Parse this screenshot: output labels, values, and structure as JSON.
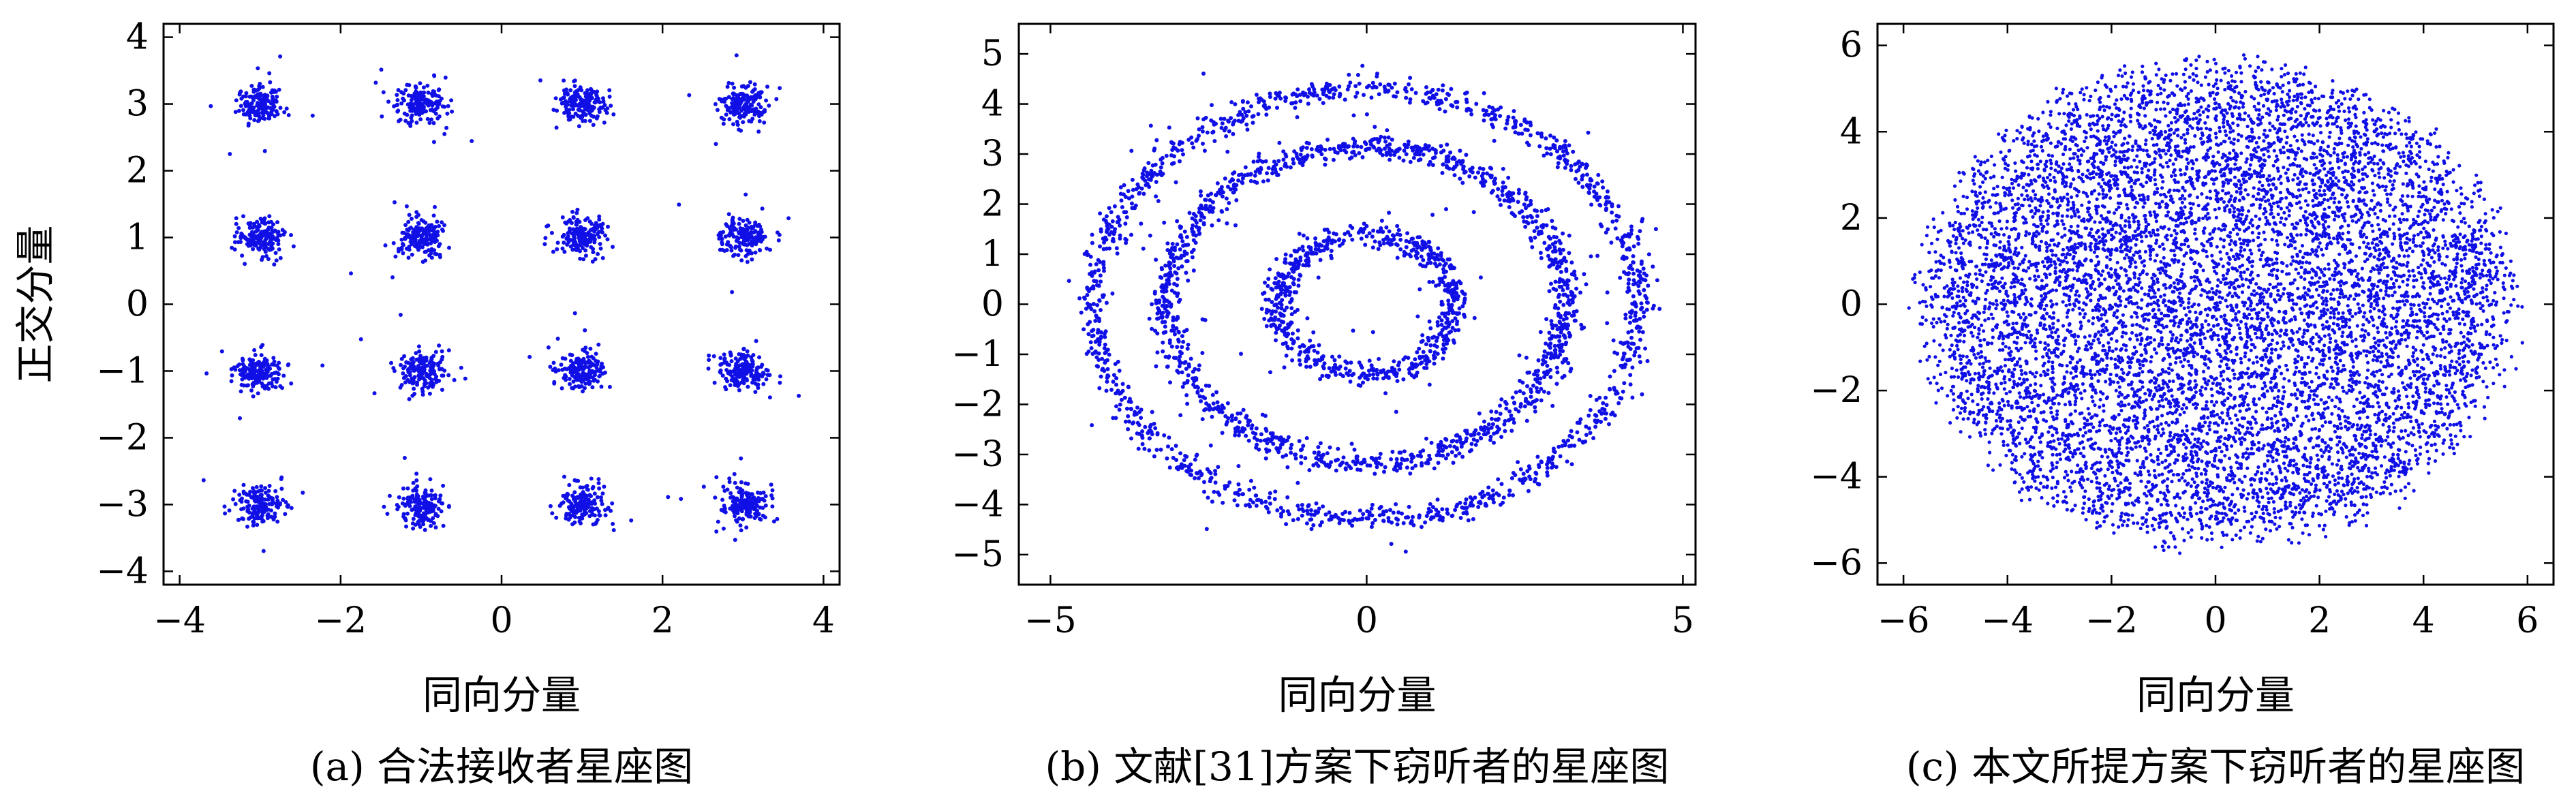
{
  "chart_data": [
    {
      "type": "scatter",
      "title": "",
      "caption": "(a) 合法接收者星座图",
      "xlabel": "同向分量",
      "ylabel": "正交分量",
      "xlim": [
        -4.2,
        4.2
      ],
      "ylim": [
        -4.2,
        4.2
      ],
      "xticks": [
        -4,
        -2,
        0,
        2,
        4
      ],
      "yticks": [
        -4,
        -3,
        -2,
        -1,
        0,
        1,
        2,
        3,
        4
      ],
      "grid": false,
      "description_of_points": "16 clusters (16-QAM) centered at all combinations of x in {-3,-1,1,3} and y in {-3,-1,1,3}, spread about 0.15",
      "clusters": [
        {
          "x": -3,
          "y": 3
        },
        {
          "x": -1,
          "y": 3
        },
        {
          "x": 1,
          "y": 3
        },
        {
          "x": 3,
          "y": 3
        },
        {
          "x": -3,
          "y": 1
        },
        {
          "x": -1,
          "y": 1
        },
        {
          "x": 1,
          "y": 1
        },
        {
          "x": 3,
          "y": 1
        },
        {
          "x": -3,
          "y": -1
        },
        {
          "x": -1,
          "y": -1
        },
        {
          "x": 1,
          "y": -1
        },
        {
          "x": 3,
          "y": -1
        },
        {
          "x": -3,
          "y": -3
        },
        {
          "x": -1,
          "y": -3
        },
        {
          "x": 1,
          "y": -3
        },
        {
          "x": 3,
          "y": -3
        }
      ],
      "cluster_spread": 0.14,
      "points_per_cluster": 170,
      "color": "#1010e6"
    },
    {
      "type": "scatter",
      "title": "",
      "caption": "(b) 文献[31]方案下窃听者的星座图",
      "xlabel": "同向分量",
      "ylabel": "",
      "xlim": [
        -5.5,
        5.2
      ],
      "ylim": [
        -5.6,
        5.6
      ],
      "xticks": [
        -5,
        0,
        5
      ],
      "yticks": [
        -5,
        -4,
        -3,
        -2,
        -1,
        0,
        1,
        2,
        3,
        4,
        5
      ],
      "grid": false,
      "description_of_points": "three concentric rings centered at origin",
      "rings": [
        {
          "radius": 1.4,
          "points": 700
        },
        {
          "radius": 3.15,
          "points": 1300
        },
        {
          "radius": 4.3,
          "points": 1300
        }
      ],
      "ring_spread": 0.12,
      "color": "#1010e6"
    },
    {
      "type": "scatter",
      "title": "",
      "caption": "(c) 本文所提方案下窃听者的星座图",
      "xlabel": "同向分量",
      "ylabel": "",
      "xlim": [
        -6.5,
        6.5
      ],
      "ylim": [
        -6.5,
        6.5
      ],
      "xticks": [
        -6,
        -4,
        -2,
        0,
        2,
        4,
        6
      ],
      "yticks": [
        -6,
        -4,
        -2,
        0,
        2,
        4,
        6
      ],
      "grid": false,
      "description_of_points": "dense disk-shaped cloud centered at origin, radius about 6",
      "disk_radius": 6.0,
      "points": 9000,
      "color": "#1010e6"
    }
  ]
}
